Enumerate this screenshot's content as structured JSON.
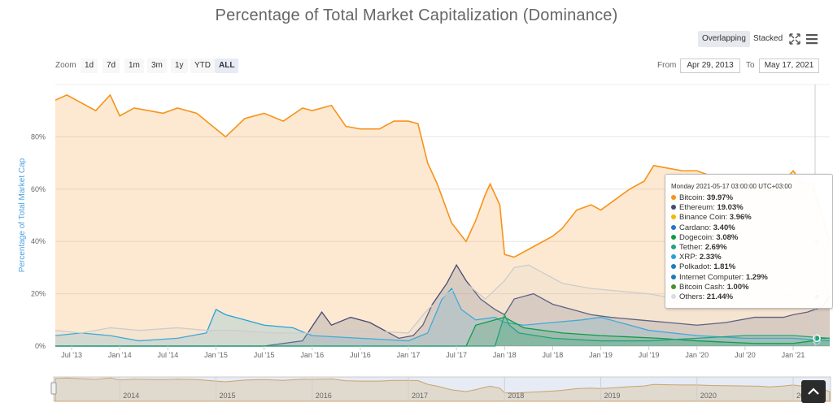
{
  "title": "Percentage of Total Market Capitalization (Dominance)",
  "mode_buttons": [
    {
      "label": "Overlapping",
      "active": true
    },
    {
      "label": "Stacked",
      "active": false
    }
  ],
  "icons": {
    "fullscreen": "expand-icon",
    "menu": "hamburger-menu-icon"
  },
  "zoom": {
    "label": "Zoom",
    "buttons": [
      "1d",
      "7d",
      "1m",
      "3m",
      "1y",
      "YTD",
      "ALL"
    ],
    "active": "ALL"
  },
  "range": {
    "from_label": "From",
    "from_value": "Apr 29, 2013",
    "to_label": "To",
    "to_value": "May 17, 2021"
  },
  "tooltip": {
    "header": "Monday 2021-05-17 03:00:00 UTC+03:00",
    "rows": [
      {
        "name": "Bitcoin",
        "value": "39.97%",
        "color": "#f7931a"
      },
      {
        "name": "Ethereum",
        "value": "19.03%",
        "color": "#454a75"
      },
      {
        "name": "Binance Coin",
        "value": "3.96%",
        "color": "#f0b90b"
      },
      {
        "name": "Cardano",
        "value": "3.40%",
        "color": "#2a71d0"
      },
      {
        "name": "Dogecoin",
        "value": "3.08%",
        "color": "#0d9b46"
      },
      {
        "name": "Tether",
        "value": "2.69%",
        "color": "#26a17b"
      },
      {
        "name": "XRP",
        "value": "2.33%",
        "color": "#23a3d9"
      },
      {
        "name": "Polkadot",
        "value": "1.81%",
        "color": "#1f7bc1"
      },
      {
        "name": "Internet Computer",
        "value": "1.29%",
        "color": "#1a7cbf"
      },
      {
        "name": "Bitcoin Cash",
        "value": "1.00%",
        "color": "#4a8f2f"
      },
      {
        "name": "Others",
        "value": "21.44%",
        "color": "#dddddd"
      }
    ]
  },
  "chart_data": {
    "type": "area",
    "title": "Percentage of Total Market Capitalization (Dominance)",
    "ylabel": "Percentage of Total Market Cap",
    "ylim": [
      0,
      100
    ],
    "y_ticks": [
      "0%",
      "20%",
      "40%",
      "60%",
      "80%"
    ],
    "y_tick_values": [
      0,
      20,
      40,
      60,
      80
    ],
    "x_ticks": [
      "Jul '13",
      "Jan '14",
      "Jul '14",
      "Jan '15",
      "Jul '15",
      "Jan '16",
      "Jul '16",
      "Jan '17",
      "Jul '17",
      "Jan '18",
      "Jul '18",
      "Jan '19",
      "Jul '19",
      "Jan '20",
      "Jul '20",
      "Jan '21"
    ],
    "x_tick_values": [
      2013.5,
      2014.0,
      2014.5,
      2015.0,
      2015.5,
      2016.0,
      2016.5,
      2017.0,
      2017.5,
      2018.0,
      2018.5,
      2019.0,
      2019.5,
      2020.0,
      2020.5,
      2021.0
    ],
    "xlim": [
      2013.33,
      2021.38
    ],
    "navigator_ticks": [
      "2014",
      "2015",
      "2016",
      "2017",
      "2018",
      "2019",
      "2020",
      "2021"
    ],
    "series": [
      {
        "name": "Bitcoin",
        "color": "#f7931a",
        "x": [
          2013.33,
          2013.45,
          2013.6,
          2013.75,
          2013.9,
          2014.0,
          2014.15,
          2014.3,
          2014.45,
          2014.6,
          2014.8,
          2015.0,
          2015.1,
          2015.3,
          2015.5,
          2015.7,
          2015.9,
          2016.0,
          2016.2,
          2016.35,
          2016.5,
          2016.7,
          2016.85,
          2017.0,
          2017.1,
          2017.2,
          2017.25,
          2017.3,
          2017.45,
          2017.6,
          2017.7,
          2017.8,
          2017.85,
          2017.95,
          2018.0,
          2018.1,
          2018.3,
          2018.5,
          2018.6,
          2018.75,
          2018.9,
          2019.0,
          2019.15,
          2019.3,
          2019.45,
          2019.55,
          2019.7,
          2019.85,
          2020.0,
          2020.15,
          2020.3,
          2020.5,
          2020.65,
          2020.75,
          2020.9,
          2021.0,
          2021.1,
          2021.2,
          2021.3,
          2021.38
        ],
        "values": [
          94,
          96,
          93,
          90,
          96,
          88,
          91,
          90,
          89,
          91,
          89,
          83,
          80,
          87,
          89,
          86,
          91,
          90,
          92,
          84,
          83,
          83,
          86,
          86,
          85,
          70,
          66,
          62,
          47,
          40,
          48,
          58,
          62,
          54,
          35,
          34,
          38,
          42,
          45,
          52,
          54,
          52,
          56,
          60,
          63,
          69,
          68,
          67,
          67,
          65,
          64,
          63,
          62,
          59,
          63,
          67,
          62,
          62,
          50,
          40
        ]
      },
      {
        "name": "Ethereum",
        "color": "#454a75",
        "x": [
          2013.33,
          2015.5,
          2015.9,
          2016.1,
          2016.2,
          2016.4,
          2016.6,
          2016.9,
          2017.05,
          2017.15,
          2017.25,
          2017.4,
          2017.5,
          2017.6,
          2017.75,
          2017.9,
          2018.0,
          2018.1,
          2018.3,
          2018.5,
          2018.7,
          2018.9,
          2019.1,
          2019.4,
          2019.7,
          2020.0,
          2020.3,
          2020.6,
          2020.9,
          2021.0,
          2021.15,
          2021.3,
          2021.38
        ],
        "values": [
          0,
          0,
          2,
          13,
          8,
          11,
          9,
          3,
          4,
          8,
          16,
          24,
          31,
          25,
          18,
          14,
          12,
          18,
          20,
          16,
          14,
          12,
          11,
          10,
          9,
          8,
          9,
          11,
          11,
          12,
          13,
          15,
          19
        ]
      },
      {
        "name": "XRP",
        "color": "#23a3d9",
        "x": [
          2013.33,
          2013.6,
          2013.9,
          2014.2,
          2014.6,
          2014.9,
          2015.0,
          2015.1,
          2015.3,
          2015.5,
          2015.8,
          2016.0,
          2016.5,
          2017.0,
          2017.2,
          2017.35,
          2017.45,
          2017.55,
          2017.7,
          2017.9,
          2018.0,
          2018.2,
          2018.5,
          2018.8,
          2019.0,
          2019.5,
          2020.0,
          2020.5,
          2021.0,
          2021.38
        ],
        "values": [
          4,
          5,
          4,
          2,
          3,
          5,
          14,
          12,
          10,
          8,
          7,
          4,
          3,
          2,
          5,
          18,
          22,
          14,
          10,
          11,
          9,
          8,
          9,
          10,
          11,
          6,
          4,
          3,
          3,
          2
        ]
      },
      {
        "name": "Others",
        "color": "#cccccc",
        "x": [
          2013.33,
          2013.6,
          2013.9,
          2014.2,
          2014.6,
          2014.9,
          2015.2,
          2015.6,
          2016.0,
          2016.5,
          2017.0,
          2017.2,
          2017.4,
          2017.6,
          2017.8,
          2018.0,
          2018.1,
          2018.25,
          2018.4,
          2018.6,
          2018.9,
          2019.2,
          2019.5,
          2019.8,
          2020.1,
          2020.4,
          2020.7,
          2021.0,
          2021.2,
          2021.38
        ],
        "values": [
          6,
          5,
          7,
          6,
          7,
          6,
          6,
          5,
          5,
          6,
          5,
          14,
          20,
          24,
          18,
          25,
          30,
          31,
          28,
          24,
          22,
          21,
          20,
          18,
          16,
          17,
          18,
          20,
          22,
          21
        ]
      },
      {
        "name": "Dogecoin",
        "color": "#0d9b46",
        "x": [
          2013.33,
          2017.6,
          2017.7,
          2017.9,
          2018.0,
          2018.2,
          2018.6,
          2019.0,
          2019.6,
          2020.0,
          2020.6,
          2021.0,
          2021.2,
          2021.3,
          2021.38
        ],
        "values": [
          0,
          0,
          8,
          10,
          11,
          7,
          5,
          4,
          3,
          2,
          1,
          1,
          2,
          3,
          3
        ]
      },
      {
        "name": "Tether",
        "color": "#26a17b",
        "x": [
          2013.33,
          2017.9,
          2018.0,
          2018.05,
          2018.15,
          2018.5,
          2019.0,
          2019.5,
          2020.0,
          2020.5,
          2021.0,
          2021.38
        ],
        "values": [
          0,
          0,
          12,
          8,
          5,
          3,
          2,
          2,
          3,
          4,
          4,
          3
        ]
      }
    ]
  }
}
